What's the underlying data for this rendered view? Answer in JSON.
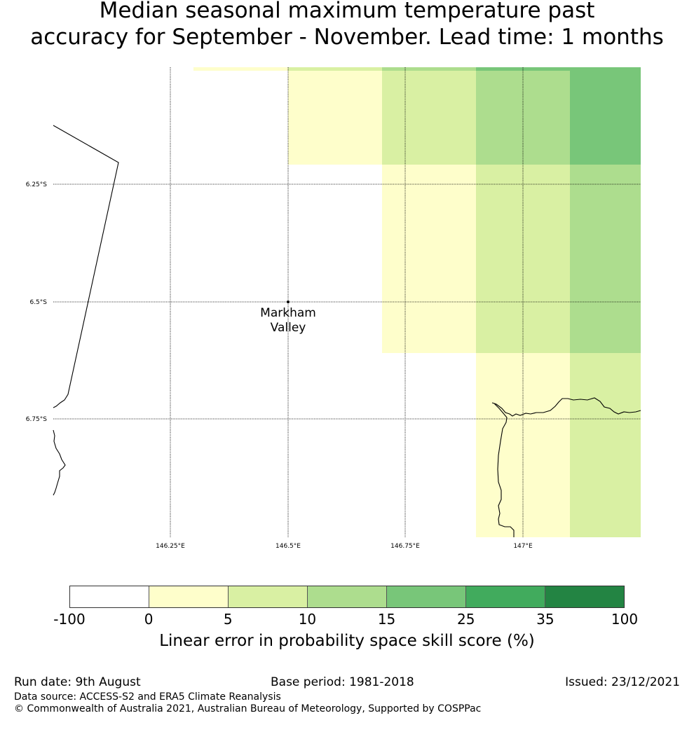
{
  "title": {
    "line1": "Median seasonal maximum temperature past",
    "line2": "accuracy for September - November. Lead time: 1 months"
  },
  "map": {
    "latitude_labels": [
      "6.25°S",
      "6.5°S",
      "6.75°S"
    ],
    "longitude_labels": [
      "146.25°E",
      "146.5°E",
      "146.75°E",
      "147°E"
    ],
    "place": {
      "name_line1": "Markham",
      "name_line2": "Valley"
    },
    "colors": {
      "cat_0_5": "#fefecb",
      "cat_5_10": "#d9f0a3",
      "cat_10_15": "#addd8e",
      "cat_15_25": "#78c679",
      "cat_25_35": "#41ab5d",
      "cat_35_100": "#238443"
    }
  },
  "colorbar": {
    "colors": [
      "#ffffff",
      "#fefecb",
      "#d9f0a3",
      "#addd8e",
      "#78c679",
      "#41ab5d",
      "#238443"
    ],
    "ticks": [
      "-100",
      "0",
      "5",
      "10",
      "15",
      "25",
      "35",
      "100"
    ],
    "label": "Linear error in probability space skill score (%)"
  },
  "footer": {
    "run_date": "Run date: 9th August",
    "base_period": "Base period: 1981-2018",
    "issued": "Issued: 23/12/2021",
    "data_source": "Data source: ACCESS-S2 and ERA5 Climate Reanalysis",
    "copyright": "© Commonwealth of Australia 2021, Australian Bureau of Meteorology, Supported by COSPPac"
  }
}
